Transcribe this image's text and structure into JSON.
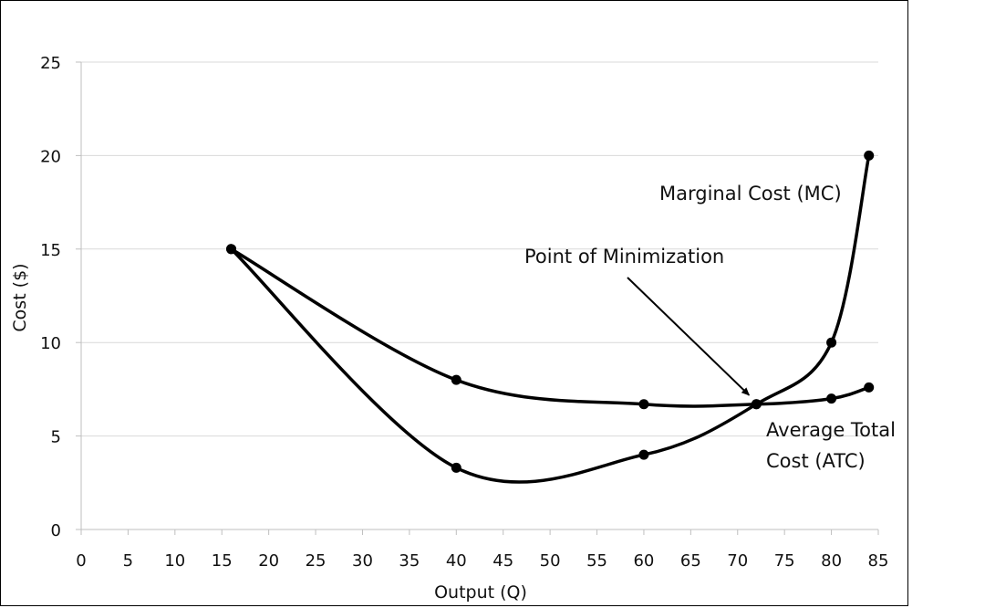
{
  "chart_data": {
    "type": "line",
    "title": "",
    "xlabel": "Output (Q)",
    "ylabel": "Cost ($)",
    "xlim": [
      0,
      85
    ],
    "ylim": [
      0,
      25
    ],
    "x_ticks": [
      0,
      5,
      10,
      15,
      20,
      25,
      30,
      35,
      40,
      45,
      50,
      55,
      60,
      65,
      70,
      75,
      80,
      85
    ],
    "y_ticks": [
      0,
      5,
      10,
      15,
      20,
      25
    ],
    "grid": "horizontal",
    "series": [
      {
        "name": "Average Total Cost (ATC)",
        "x": [
          16,
          40,
          60,
          72,
          80,
          84
        ],
        "y": [
          15,
          8,
          6.7,
          6.7,
          7,
          7.6
        ]
      },
      {
        "name": "Marginal Cost (MC)",
        "x": [
          16,
          40,
          60,
          72,
          80,
          84
        ],
        "y": [
          15,
          3.3,
          4,
          6.7,
          10,
          20
        ]
      }
    ],
    "annotations": [
      {
        "text": "Point of Minimization",
        "points_to": {
          "x": 72,
          "y": 6.7
        }
      }
    ],
    "series_labels": {
      "mc": "Marginal Cost (MC)",
      "atc_line1": "Average Total",
      "atc_line2": "Cost (ATC)"
    }
  }
}
